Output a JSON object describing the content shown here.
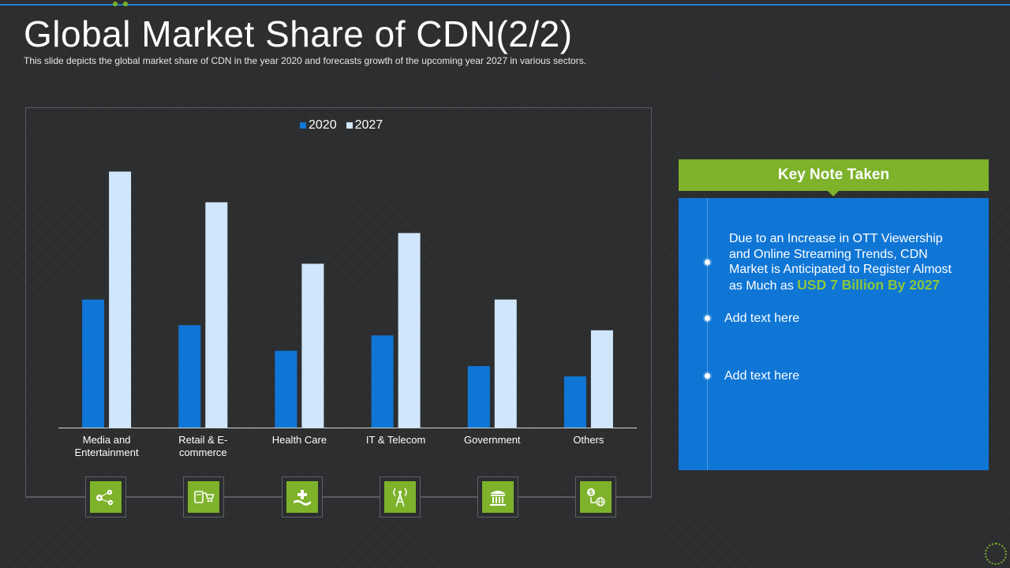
{
  "slide": {
    "title": "Global Market Share of CDN(2/2)",
    "subtitle": "This slide depicts the global market share of CDN in the year 2020 and forecasts growth of the upcoming year 2027 in various  sectors."
  },
  "colors": {
    "background": "#2d2e30",
    "series_2020": "#0f76d6",
    "series_2027": "#cfe6fb",
    "accent_green": "#7db22a",
    "highlight_green": "#8bc63f",
    "note_blue": "#0f76d6",
    "top_line": "#1f7fd6"
  },
  "chart_data": {
    "type": "bar",
    "categories": [
      "Media and Entertainment",
      "Retail & E-commerce",
      "Health Care",
      "IT & Telecom",
      "Government",
      "Others"
    ],
    "category_labels": [
      [
        "Media and",
        "Entertainment"
      ],
      [
        "Retail & E-",
        "commerce"
      ],
      [
        "Health Care"
      ],
      [
        "IT & Telecom"
      ],
      [
        "Government"
      ],
      [
        "Others"
      ]
    ],
    "series": [
      {
        "name": "2020",
        "values": [
          5.0,
          4.0,
          3.0,
          3.6,
          2.4,
          2.0
        ]
      },
      {
        "name": "2027",
        "values": [
          10.0,
          8.8,
          6.4,
          7.6,
          5.0,
          3.8
        ]
      }
    ],
    "ylim": [
      0,
      10.6
    ],
    "grid": false,
    "legend_position": "top-center",
    "title": "",
    "xlabel": "",
    "ylabel": ""
  },
  "sector_icons": [
    {
      "icon": "people-network-icon"
    },
    {
      "icon": "shopping-cart-icon"
    },
    {
      "icon": "healthcare-hands-icon"
    },
    {
      "icon": "telecom-tower-icon"
    },
    {
      "icon": "government-building-icon"
    },
    {
      "icon": "money-globe-icon"
    }
  ],
  "key_note": {
    "header": "Key Note Taken",
    "points": [
      {
        "lines": [
          "Due to an Increase in OTT Viewership",
          "and Online Streaming Trends, CDN",
          "Market is Anticipated to Register Almost"
        ],
        "prefix": "as Much  as ",
        "highlight": "USD 7 Billion By 2027"
      },
      {
        "text": "Add text here"
      },
      {
        "text": "Add text here"
      }
    ]
  }
}
